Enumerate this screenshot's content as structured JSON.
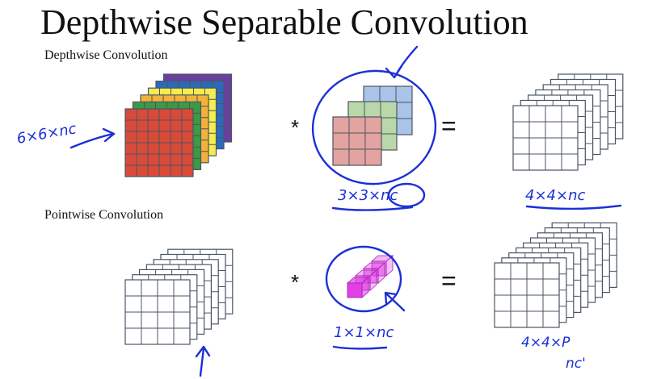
{
  "title": "Depthwise Separable Convolution",
  "sections": {
    "depthwise": "Depthwise Convolution",
    "pointwise": "Pointwise Convolution"
  },
  "operators": {
    "multiply": "*",
    "equals": "="
  },
  "annotations": {
    "input_dims": "6×6×nc",
    "depthwise_filter_dims": "3×3×nc",
    "depthwise_output_dims": "4×4×nc",
    "pointwise_filter_dims": "1×1×nc",
    "pointwise_output_dims": "4×4×P",
    "pointwise_output_note": "nc'"
  },
  "colors": {
    "ink": "#1c2fd8",
    "grid_line": "#4a5563",
    "input_layers": [
      "#d94a38",
      "#3a9a45",
      "#f2b23a",
      "#f5ec4e",
      "#2a6ab8",
      "#6b3fa0"
    ],
    "filter_layers": [
      "#e3a3a0",
      "#b9d7a8",
      "#a9c4e6"
    ],
    "pointwise_cube": "#e040e6"
  }
}
